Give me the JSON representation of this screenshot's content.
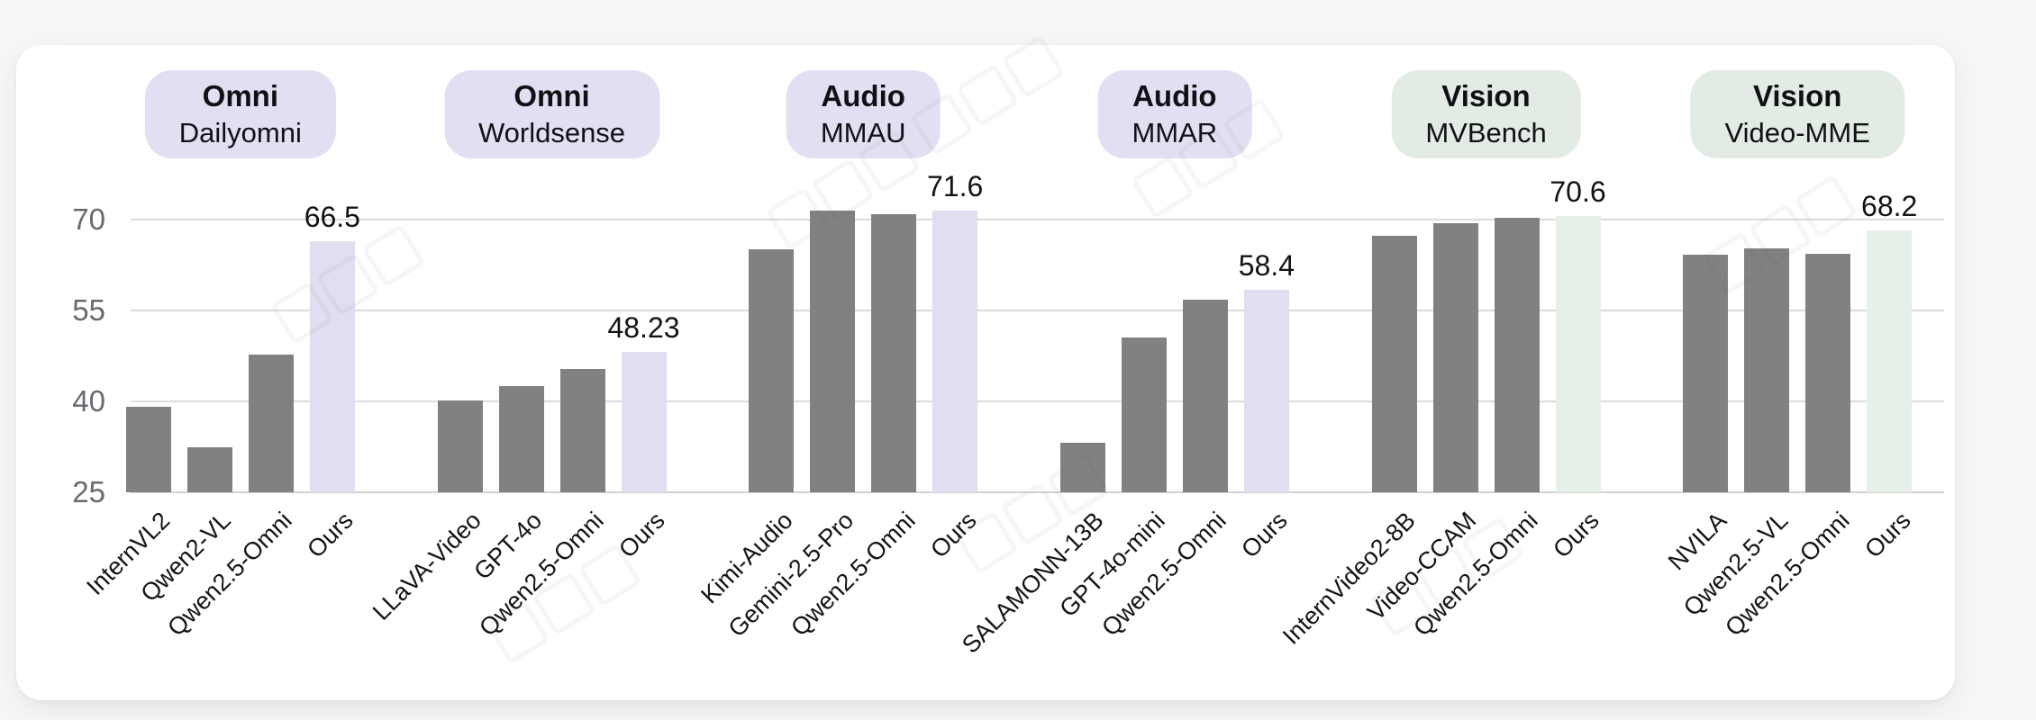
{
  "page": {
    "background_color": "#f6f6f7",
    "card_background_color": "#ffffff"
  },
  "chart_data": {
    "type": "bar",
    "title": "",
    "xlabel": "",
    "ylabel": "",
    "grid": true,
    "y_ticks": [
      25,
      40,
      55,
      70
    ],
    "ylim": [
      25,
      76.9
    ],
    "palette": {
      "default_bar": "#818181",
      "ours_bar_omni_audio": "#e1def1",
      "ours_bar_vision": "#e7efe9",
      "badge_omni_audio": "#e3dff3",
      "badge_vision": "#e2ebe4",
      "gridline": "#dcdcdc",
      "tick_label": "#666a6e",
      "text": "#131313"
    },
    "groups": [
      {
        "task": "Omni",
        "benchmark": "Dailyomni",
        "theme": "purple",
        "ours_value_label": "66.5",
        "bars": [
          {
            "model": "InternVL2",
            "value": 39.1
          },
          {
            "model": "Qwen2-VL",
            "value": 32.5
          },
          {
            "model": "Qwen2.5-Omni",
            "value": 47.7
          },
          {
            "model": "Ours",
            "value": 66.5,
            "ours": true
          }
        ]
      },
      {
        "task": "Omni",
        "benchmark": "Worldsense",
        "theme": "purple",
        "ours_value_label": "48.23",
        "bars": [
          {
            "model": "LLaVA-Video",
            "value": 40.2
          },
          {
            "model": "GPT-4o",
            "value": 42.6
          },
          {
            "model": "Qwen2.5-Omni",
            "value": 45.4
          },
          {
            "model": "Ours",
            "value": 48.23,
            "ours": true
          }
        ]
      },
      {
        "task": "Audio",
        "benchmark": "MMAU",
        "theme": "purple",
        "ours_value_label": "71.6",
        "bars": [
          {
            "model": "Kimi-Audio",
            "value": 65.1
          },
          {
            "model": "Gemini-2.5-Pro",
            "value": 71.5
          },
          {
            "model": "Qwen2.5-Omni",
            "value": 71.0
          },
          {
            "model": "Ours",
            "value": 71.6,
            "ours": true
          }
        ]
      },
      {
        "task": "Audio",
        "benchmark": "MMAR",
        "theme": "purple",
        "ours_value_label": "58.4",
        "bars": [
          {
            "model": "SALAMONN-13B",
            "value": 33.2
          },
          {
            "model": "GPT-4o-mini",
            "value": 50.6
          },
          {
            "model": "Qwen2.5-Omni",
            "value": 56.8
          },
          {
            "model": "Ours",
            "value": 58.4,
            "ours": true
          }
        ]
      },
      {
        "task": "Vision",
        "benchmark": "MVBench",
        "theme": "green",
        "ours_value_label": "70.6",
        "bars": [
          {
            "model": "InternVideo2-8B",
            "value": 67.3
          },
          {
            "model": "Video-CCAM",
            "value": 69.4
          },
          {
            "model": "Qwen2.5-Omni",
            "value": 70.3
          },
          {
            "model": "Ours",
            "value": 70.6,
            "ours": true
          }
        ]
      },
      {
        "task": "Vision",
        "benchmark": "Video-MME",
        "theme": "green",
        "ours_value_label": "68.2",
        "bars": [
          {
            "model": "NVILA",
            "value": 64.2
          },
          {
            "model": "Qwen2.5-VL",
            "value": 65.3
          },
          {
            "model": "Qwen2.5-Omni",
            "value": 64.4
          },
          {
            "model": "Ours",
            "value": 68.2,
            "ours": true
          }
        ]
      }
    ],
    "legend": [],
    "annotations": [
      "66.5",
      "48.23",
      "71.6",
      "58.4",
      "70.6",
      "68.2"
    ],
    "watermark": {
      "legible": false
    }
  }
}
